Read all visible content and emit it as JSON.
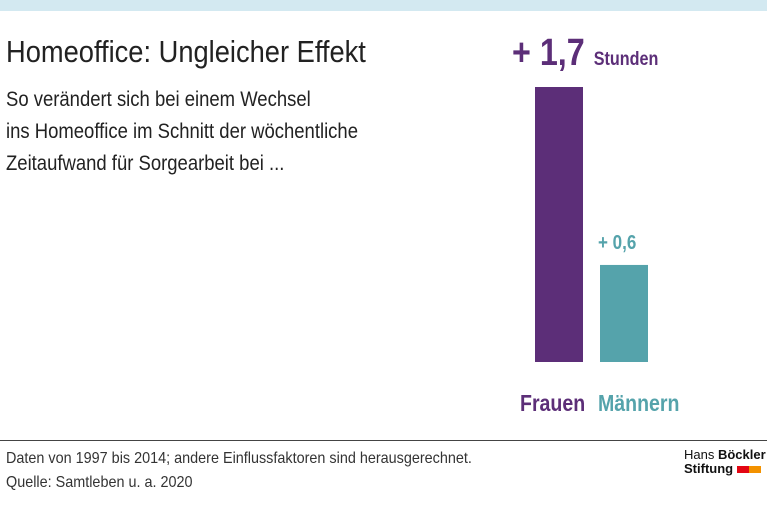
{
  "title": "Homeoffice: Ungleicher Effekt",
  "subtitle": [
    "So verändert sich bei einem Wechsel",
    "ins Homeoffice im Schnitt der wöchentliche",
    "Zeitaufwand für Sorgearbeit bei ..."
  ],
  "chart_data": {
    "type": "bar",
    "categories": [
      "Frauen",
      "Männern"
    ],
    "values": [
      1.7,
      0.6
    ],
    "data_labels": [
      "+ 1,7",
      "+ 0,6"
    ],
    "unit": "Stunden",
    "colors": [
      "#5c2e78",
      "#55a3ab"
    ],
    "ylim": [
      0,
      1.7
    ],
    "grid": false
  },
  "footer": {
    "note": "Daten von 1997 bis 2014; andere Einflussfaktoren sind herausgerechnet.",
    "source": "Quelle: Samtleben u. a. 2020"
  },
  "logo": {
    "line1a": "Hans ",
    "line1b": "Böckler",
    "line2": "Stiftung",
    "colors": [
      "#e30613",
      "#f39200"
    ]
  }
}
